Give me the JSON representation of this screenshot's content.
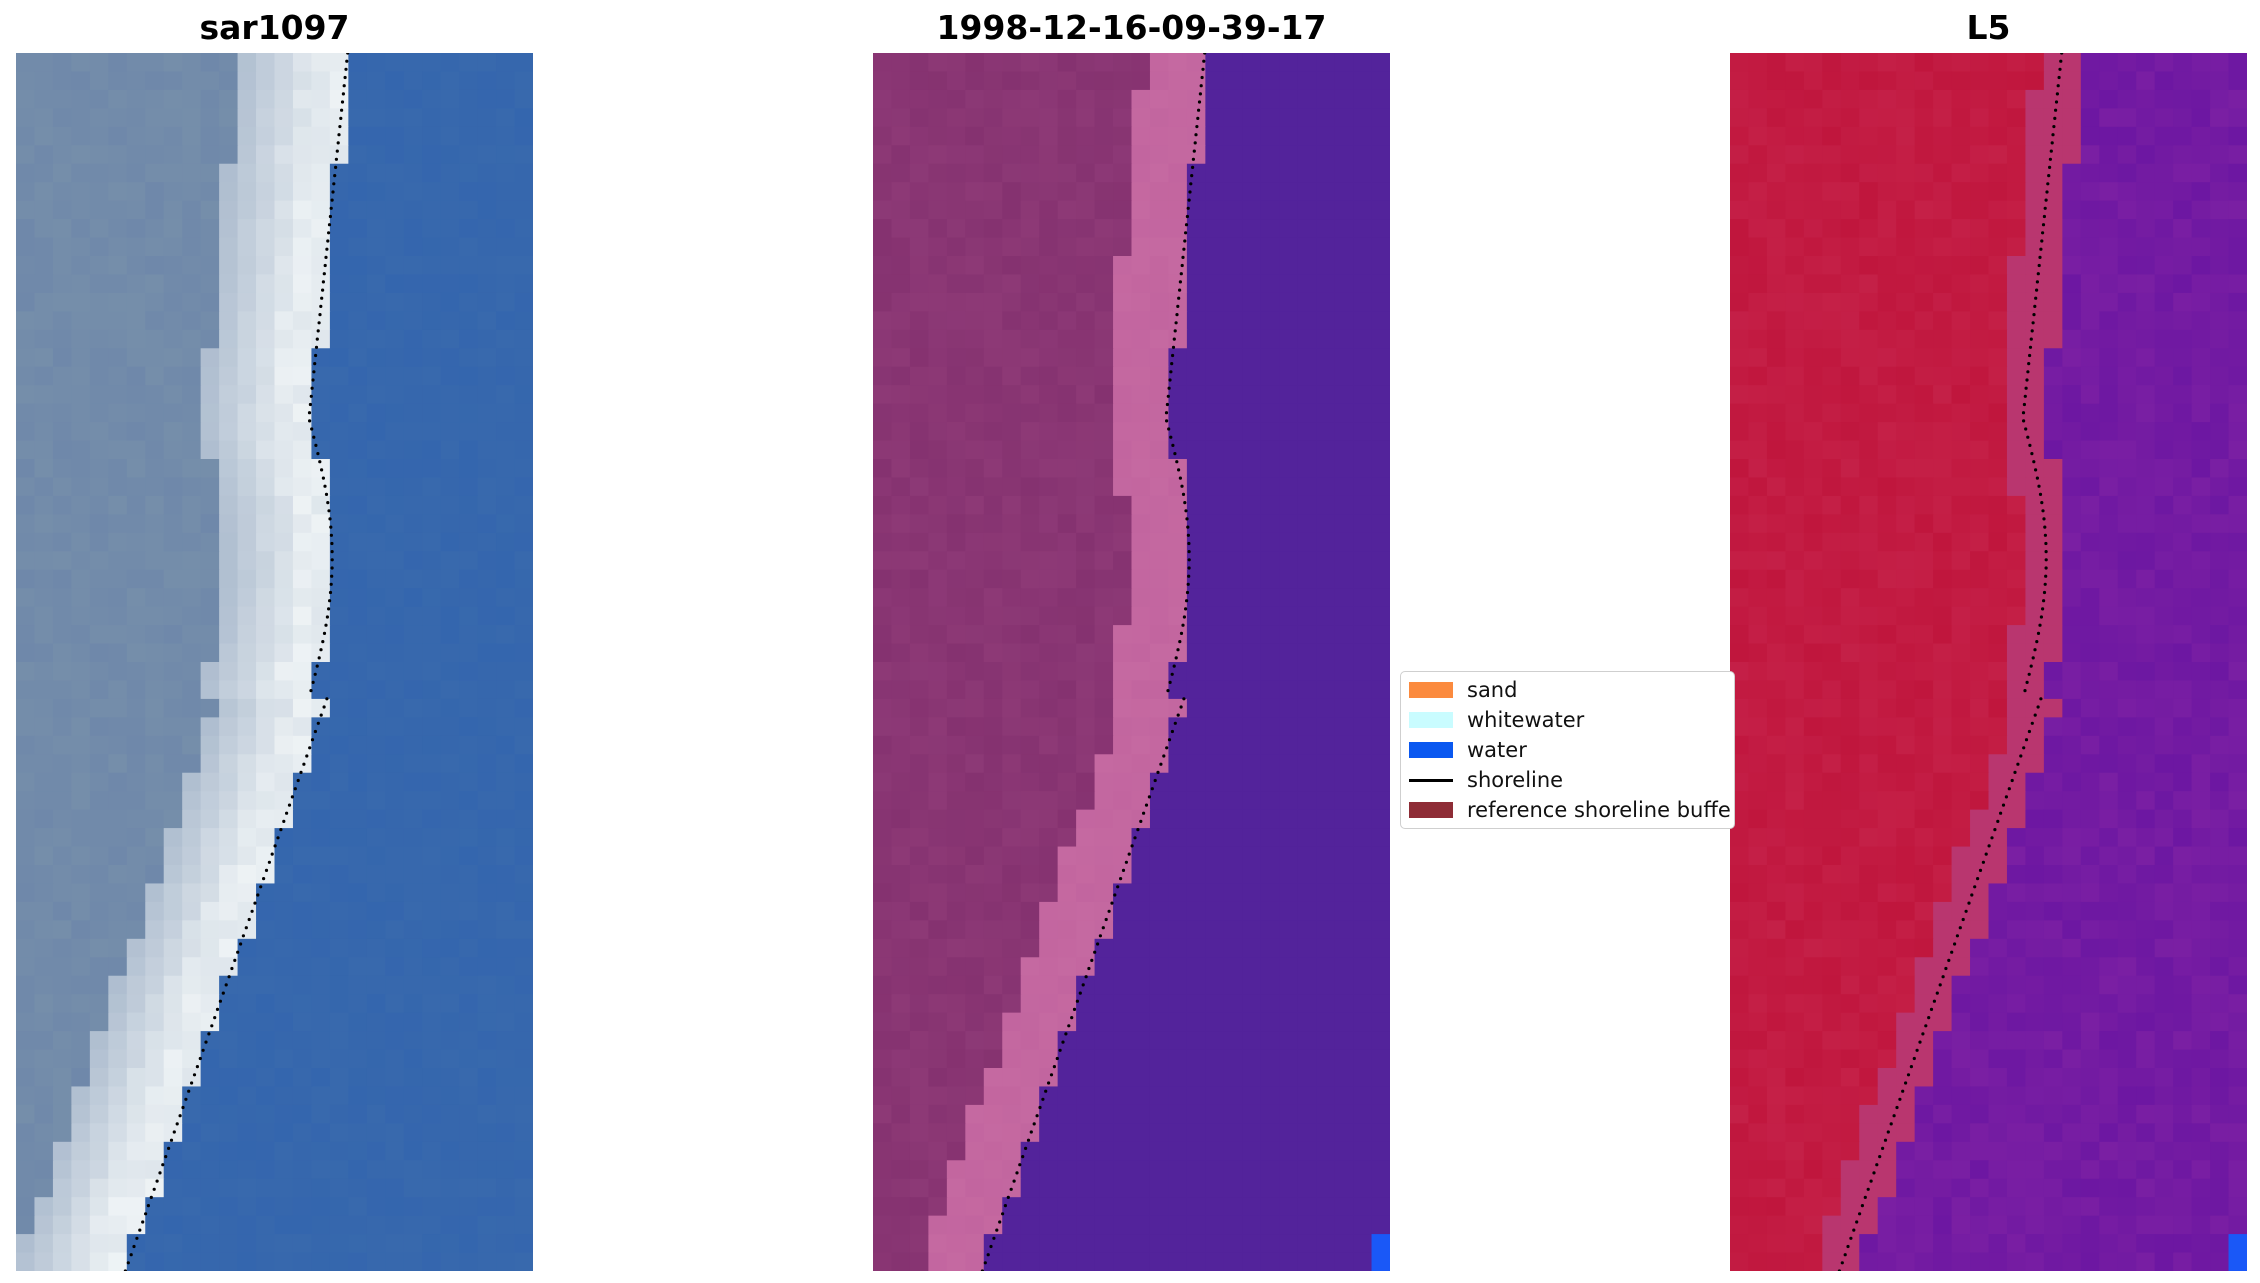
{
  "panels": [
    {
      "title": "sar1097",
      "palette": "rgb"
    },
    {
      "title": "1998-12-16-09-39-17",
      "palette": "classified"
    },
    {
      "title": "L5",
      "palette": "index"
    }
  ],
  "legend": {
    "items": [
      {
        "label": "sand",
        "color": "#fb8a3e",
        "kind": "patch"
      },
      {
        "label": "whitewater",
        "color": "#c9fcff",
        "kind": "patch"
      },
      {
        "label": "water",
        "color": "#0a58f0",
        "kind": "patch"
      },
      {
        "label": "shoreline",
        "color": "#000000",
        "kind": "line"
      },
      {
        "label": "reference shoreline buffe",
        "color": "#8e2c36",
        "kind": "patch"
      }
    ]
  },
  "colors": {
    "ocean_blue": "#3869ad",
    "land_slate": "#6f88aa",
    "surf_white": "#eef3f5",
    "classified_water": "#53239b",
    "classified_land": "#853270",
    "classified_pink": "#c2659f",
    "index_land": "#c0163d",
    "index_water": "#7a1fa3",
    "corner_water": "#1a58f7"
  }
}
